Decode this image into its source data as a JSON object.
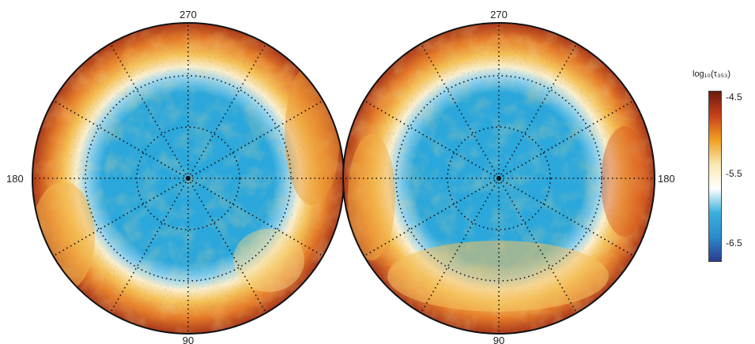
{
  "maps": [
    {
      "id": "left",
      "labels": {
        "top": "270",
        "bottom": "90",
        "side": "180"
      }
    },
    {
      "id": "right",
      "labels": {
        "top": "270",
        "bottom": "90",
        "side": "180"
      }
    }
  ],
  "colorbar": {
    "title": "log₁₀(τ₃₅₃)",
    "ticks": [
      "-4.5",
      "-5.5",
      "-6.5"
    ],
    "colors": [
      "#6b1a0e",
      "#c8401a",
      "#f0a020",
      "#f8e8b0",
      "#ffffff",
      "#3ab0dc",
      "#2a8ccc",
      "#2a3a90"
    ]
  }
}
